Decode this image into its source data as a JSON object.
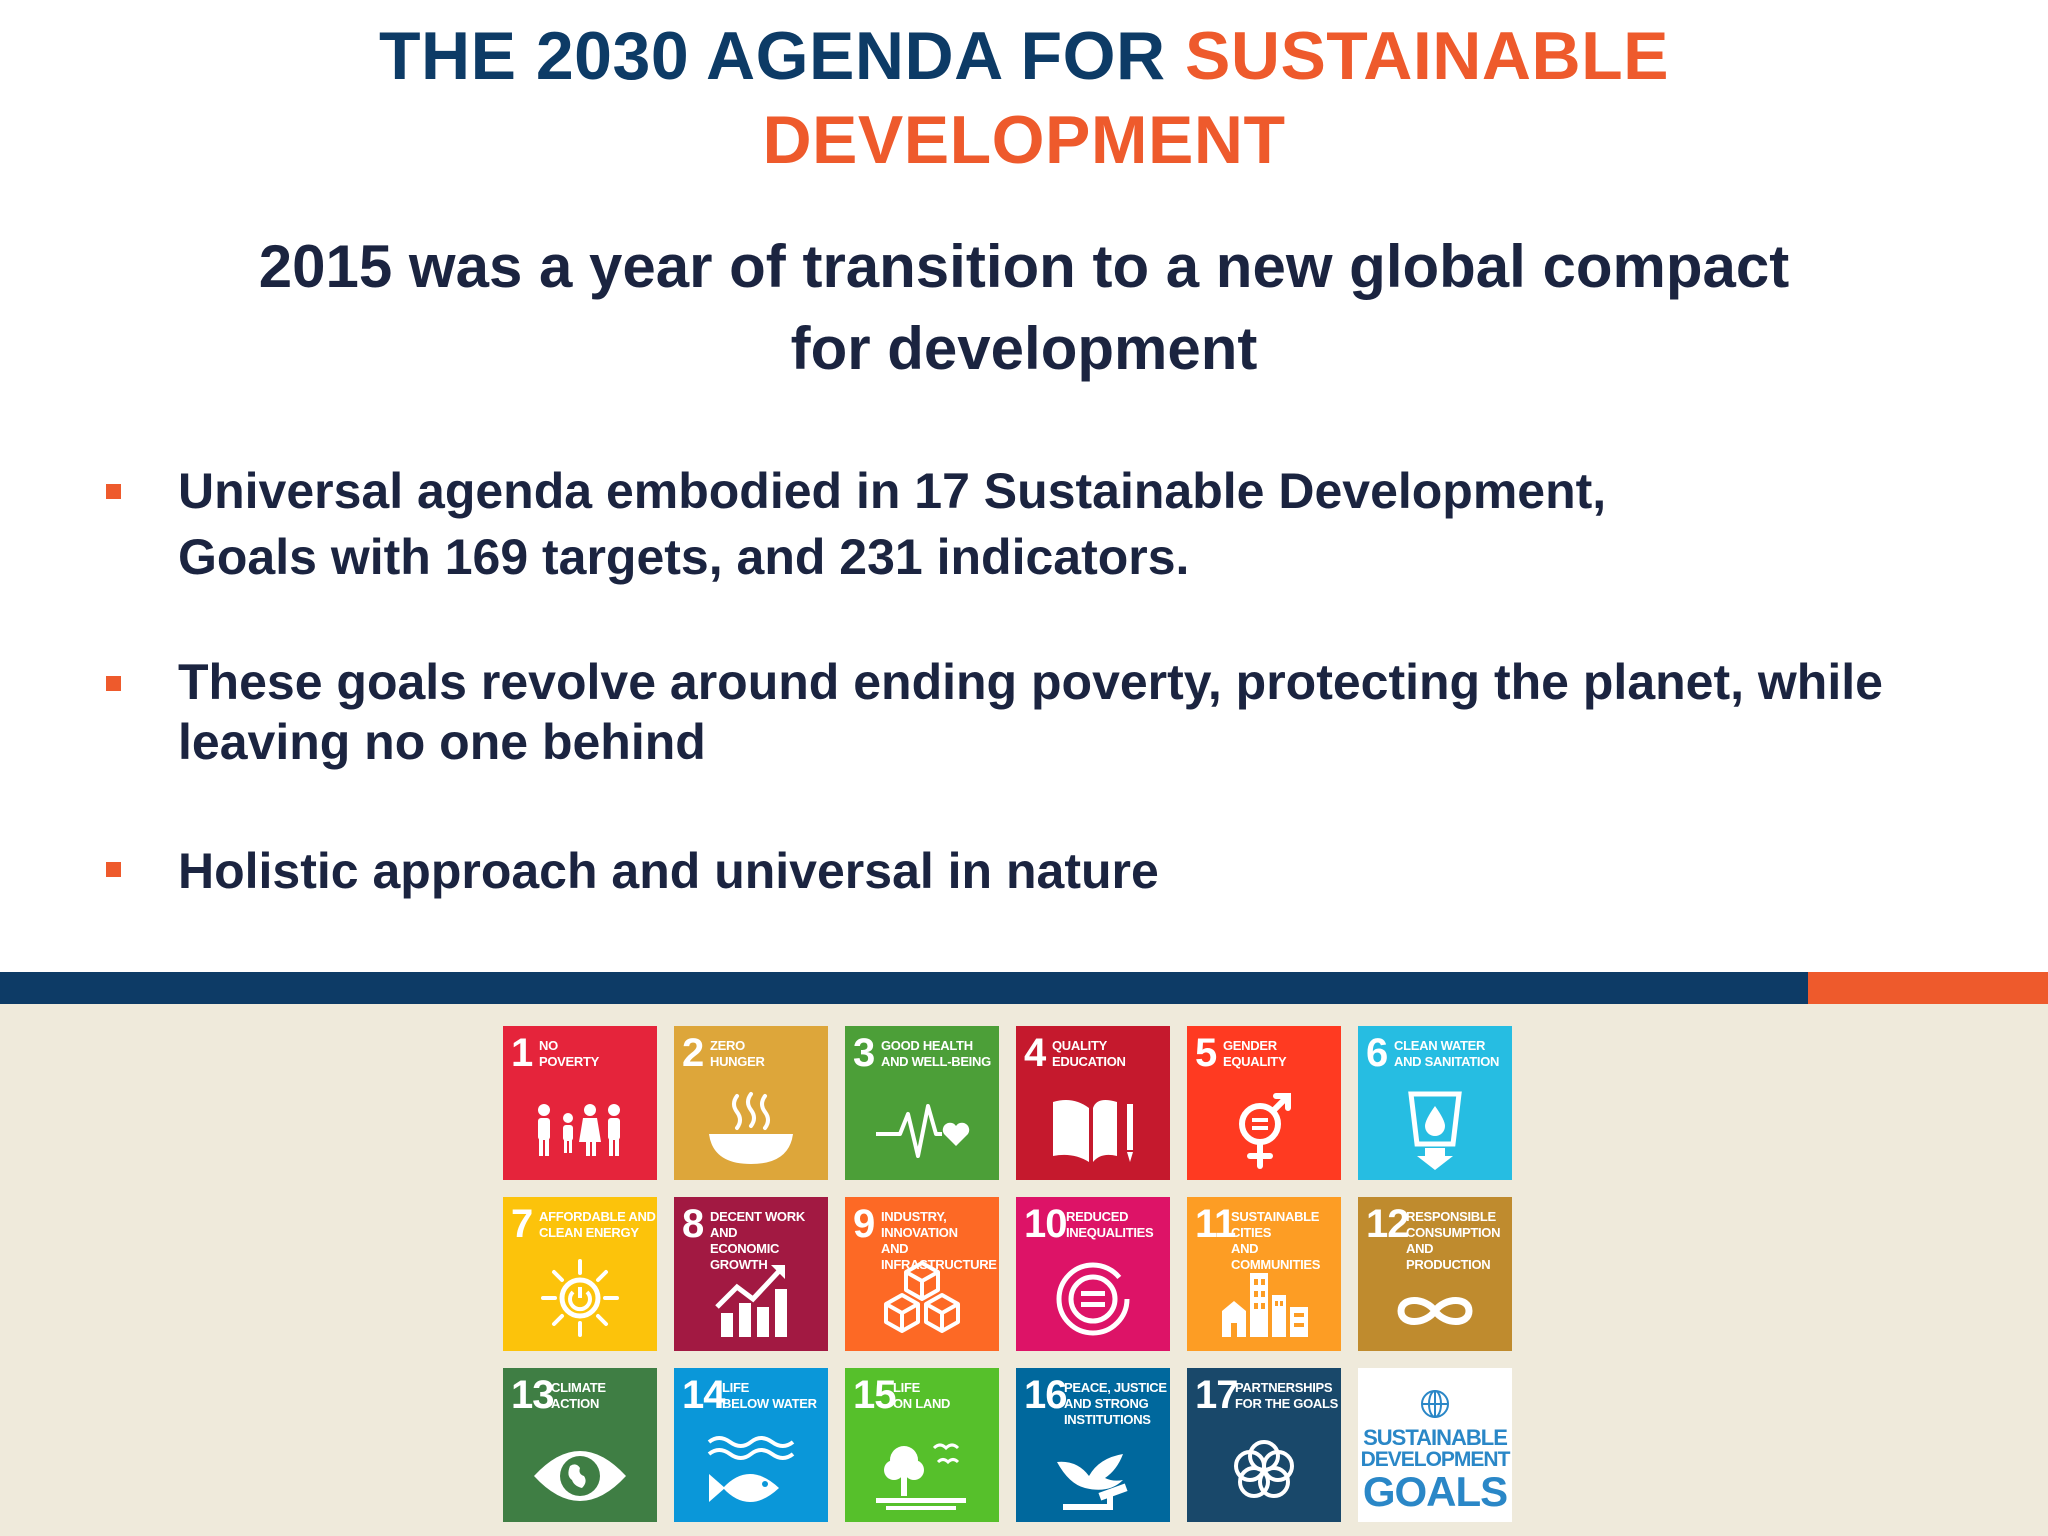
{
  "title": {
    "part1": "THE 2030 AGENDA FOR ",
    "part2": "SUSTAINABLE",
    "line2": "DEVELOPMENT"
  },
  "subtitle": {
    "line1": "2015 was a year of transition to a new global compact",
    "line2": "for development"
  },
  "bullets": [
    {
      "line1": "Universal agenda embodied in 17 Sustainable Development,",
      "line2": "Goals with 169 targets, and 231 indicators."
    },
    {
      "line1": "These goals revolve around ending poverty, protecting the planet, while",
      "line2": "leaving no one behind"
    },
    {
      "line1": "Holistic approach and universal in nature",
      "line2": ""
    }
  ],
  "colors": {
    "navy": "#0d3b66",
    "orange": "#ee5a2c",
    "text": "#1b2440",
    "lower_bg": "#efeadb"
  },
  "goals": [
    {
      "number": "1",
      "label": "No\nPoverty",
      "color": "#e5243b",
      "icon": "family-icon"
    },
    {
      "number": "2",
      "label": "Zero\nHunger",
      "color": "#dda63a",
      "icon": "bowl-icon"
    },
    {
      "number": "3",
      "label": "Good Health\nand Well-Being",
      "color": "#4c9f38",
      "icon": "heartbeat-icon"
    },
    {
      "number": "4",
      "label": "Quality\nEducation",
      "color": "#c5192d",
      "icon": "book-icon"
    },
    {
      "number": "5",
      "label": "Gender\nEquality",
      "color": "#ff3a21",
      "icon": "gender-icon"
    },
    {
      "number": "6",
      "label": "Clean Water\nand Sanitation",
      "color": "#26bde2",
      "icon": "water-icon"
    },
    {
      "number": "7",
      "label": "Affordable and\nClean Energy",
      "color": "#fcc30b",
      "icon": "sun-power-icon"
    },
    {
      "number": "8",
      "label": "Decent Work and\nEconomic Growth",
      "color": "#a21942",
      "icon": "growth-chart-icon"
    },
    {
      "number": "9",
      "label": "Industry, Innovation\nand Infrastructure",
      "color": "#fd6925",
      "icon": "cubes-icon"
    },
    {
      "number": "10",
      "label": "Reduced\nInequalities",
      "color": "#dd1367",
      "icon": "equal-circle-icon"
    },
    {
      "number": "11",
      "label": "Sustainable Cities\nand Communities",
      "color": "#fd9d24",
      "icon": "city-icon"
    },
    {
      "number": "12",
      "label": "Responsible\nConsumption\nand Production",
      "color": "#bf8b2e",
      "icon": "infinity-icon"
    },
    {
      "number": "13",
      "label": "Climate\nAction",
      "color": "#3f7e44",
      "icon": "eye-globe-icon"
    },
    {
      "number": "14",
      "label": "Life\nBelow Water",
      "color": "#0a97d9",
      "icon": "fish-icon"
    },
    {
      "number": "15",
      "label": "Life\nOn Land",
      "color": "#56c02b",
      "icon": "tree-icon"
    },
    {
      "number": "16",
      "label": "Peace, Justice\nand Strong\nInstitutions",
      "color": "#00689d",
      "icon": "dove-icon"
    },
    {
      "number": "17",
      "label": "Partnerships\nfor the Goals",
      "color": "#19486a",
      "icon": "rings-icon"
    }
  ],
  "sdg_logo": {
    "line1": "SUSTAINABLE",
    "line2": "DEVELOPMENT",
    "line3": "GOALS",
    "icon": "un-emblem-icon"
  }
}
